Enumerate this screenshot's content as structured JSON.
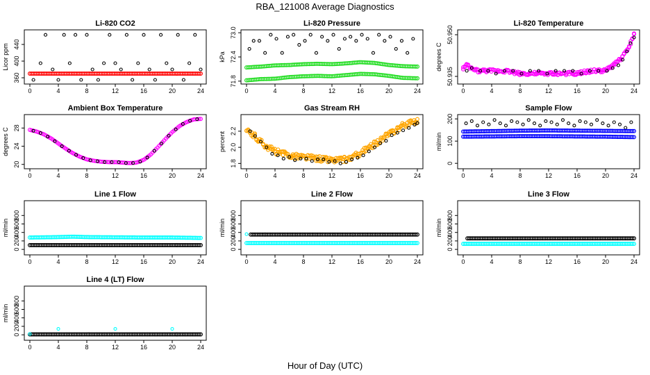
{
  "figure": {
    "title": "RBA_121008  Average Diagnostics",
    "xlabel": "Hour of Day (UTC)"
  },
  "colors": {
    "black": "#000000",
    "red": "#ff0000",
    "green": "#22dd22",
    "magenta": "#ff00ff",
    "orange": "#ffa500",
    "blue": "#0000ff",
    "cyan": "#00ffff"
  },
  "chart_data": [
    {
      "type": "scatter",
      "title": "Li-820 CO2",
      "ylabel": "Licor ppm",
      "xlim": [
        0,
        24
      ],
      "ylim": [
        350,
        470
      ],
      "xticks": [
        "0",
        "4",
        "8",
        "12",
        "16",
        "20",
        "24"
      ],
      "yticks": [
        "360",
        "400",
        "440"
      ],
      "series": [
        {
          "color": "black",
          "pattern": "scattered",
          "x": [
            0.5,
            1.5,
            2.2,
            3.2,
            4.0,
            4.8,
            5.6,
            6.4,
            7.2,
            8.0,
            8.8,
            9.6,
            10.4,
            11.2,
            12.0,
            12.8,
            13.6,
            14.4,
            15.2,
            16.0,
            16.8,
            17.6,
            18.4,
            19.2,
            20.0,
            20.8,
            21.6,
            22.4,
            23.2,
            24.0
          ],
          "y": [
            355,
            395,
            463,
            380,
            355,
            463,
            395,
            463,
            355,
            463,
            380,
            355,
            395,
            463,
            395,
            380,
            463,
            355,
            395,
            463,
            380,
            355,
            463,
            395,
            380,
            463,
            355,
            395,
            463,
            380
          ]
        },
        {
          "color": "red",
          "pattern": "dense",
          "x": [
            0,
            24
          ],
          "y": [
            370,
            370
          ]
        }
      ]
    },
    {
      "type": "scatter",
      "title": "Li-820 Pressure",
      "ylabel": "kPa",
      "xlim": [
        0,
        24
      ],
      "ylim": [
        71.78,
        73.02
      ],
      "xticks": [
        "0",
        "4",
        "8",
        "12",
        "16",
        "20",
        "24"
      ],
      "yticks": [
        "71.8",
        "72.4",
        "73.0"
      ],
      "series": [
        {
          "color": "black",
          "pattern": "scattered",
          "x": [
            0.4,
            1.0,
            1.8,
            2.6,
            3.4,
            4.2,
            5.0,
            5.8,
            6.6,
            7.4,
            8.2,
            9.0,
            9.8,
            10.6,
            11.4,
            12.2,
            13.0,
            13.8,
            14.6,
            15.4,
            16.2,
            17.0,
            17.8,
            18.6,
            19.4,
            20.2,
            21.0,
            21.8,
            22.6,
            23.4
          ],
          "y": [
            72.6,
            72.8,
            72.8,
            72.5,
            72.95,
            72.85,
            72.5,
            72.9,
            72.95,
            72.7,
            72.8,
            72.95,
            72.5,
            72.9,
            72.8,
            72.95,
            72.6,
            72.85,
            72.9,
            72.8,
            72.95,
            72.85,
            72.5,
            72.95,
            72.8,
            72.9,
            72.6,
            72.8,
            72.5,
            72.85
          ]
        },
        {
          "color": "green",
          "pattern": "dense",
          "x": [
            0,
            2,
            4,
            6,
            8,
            10,
            12,
            14,
            16,
            18,
            20,
            22,
            24
          ],
          "y": [
            72.14,
            72.16,
            72.19,
            72.2,
            72.22,
            72.23,
            72.22,
            72.24,
            72.27,
            72.25,
            72.2,
            72.17,
            72.16
          ]
        },
        {
          "color": "green",
          "pattern": "dense",
          "x": [
            0,
            2,
            4,
            6,
            8,
            10,
            12,
            14,
            16,
            18,
            20,
            22,
            24
          ],
          "y": [
            71.82,
            71.85,
            71.86,
            71.9,
            71.92,
            71.93,
            71.92,
            71.95,
            71.98,
            71.97,
            71.93,
            71.88,
            71.87
          ]
        }
      ]
    },
    {
      "type": "scatter",
      "title": "Li-820 Temperature",
      "ylabel": "degrees C",
      "xlim": [
        0,
        24
      ],
      "ylim": [
        50.933,
        50.951
      ],
      "xticks": [
        "0",
        "4",
        "8",
        "12",
        "16",
        "20",
        "24"
      ],
      "yticks": [
        "50.935",
        "50.950"
      ],
      "series": [
        {
          "color": "magenta",
          "pattern": "band",
          "x": [
            0,
            0.5,
            1,
            2,
            4,
            6,
            8,
            10,
            12,
            14,
            16,
            18,
            20,
            21,
            22,
            23,
            24
          ],
          "y": [
            50.938,
            50.939,
            50.938,
            50.937,
            50.937,
            50.937,
            50.936,
            50.936,
            50.936,
            50.936,
            50.936,
            50.937,
            50.937,
            50.939,
            50.941,
            50.944,
            50.95
          ],
          "spread": 0.0012
        },
        {
          "color": "black",
          "pattern": "scattered",
          "x": [
            0.5,
            1.2,
            2.4,
            3.5,
            4.6,
            5.8,
            7.0,
            8.2,
            9.4,
            10.6,
            11.8,
            13.0,
            14.2,
            15.4,
            16.6,
            17.8,
            19.0,
            20.2,
            21.0,
            21.8,
            22.4,
            23.0,
            23.5,
            24.0
          ],
          "y": [
            50.937,
            50.938,
            50.937,
            50.937,
            50.936,
            50.937,
            50.937,
            50.936,
            50.937,
            50.937,
            50.936,
            50.937,
            50.937,
            50.937,
            50.936,
            50.937,
            50.937,
            50.937,
            50.938,
            50.939,
            50.941,
            50.944,
            50.947,
            50.949
          ]
        }
      ]
    },
    {
      "type": "scatter",
      "title": "Ambient Box Temperature",
      "ylabel": "degrees C",
      "xlim": [
        0,
        24
      ],
      "ylim": [
        19.5,
        30.5
      ],
      "xticks": [
        "0",
        "4",
        "8",
        "12",
        "16",
        "20",
        "24"
      ],
      "yticks": [
        "20",
        "24",
        "28"
      ],
      "series": [
        {
          "color": "magenta",
          "pattern": "dense",
          "x": [
            0,
            1,
            2,
            3,
            4,
            5,
            6,
            7,
            8,
            9,
            10,
            11,
            12,
            13,
            14,
            15,
            16,
            17,
            18,
            19,
            20,
            21,
            22,
            23,
            24
          ],
          "y": [
            27.6,
            27.2,
            26.6,
            25.7,
            24.6,
            23.5,
            22.5,
            21.7,
            21.1,
            20.8,
            20.6,
            20.5,
            20.5,
            20.4,
            20.3,
            20.4,
            21.0,
            22.2,
            23.8,
            25.5,
            27.1,
            28.4,
            29.3,
            29.9,
            30.0
          ]
        },
        {
          "color": "black",
          "pattern": "scattered",
          "x": [
            0.5,
            1.5,
            2.5,
            3.5,
            4.5,
            5.5,
            6.5,
            7.5,
            8.5,
            9.5,
            10.5,
            11.5,
            12.5,
            13.5,
            14.5,
            15.5,
            16.5,
            17.5,
            18.5,
            19.5,
            20.5,
            21.5,
            22.5,
            23.5
          ],
          "y": [
            27.4,
            26.9,
            26.1,
            25.1,
            24.0,
            23.0,
            22.1,
            21.4,
            20.9,
            20.7,
            20.5,
            20.5,
            20.5,
            20.3,
            20.3,
            20.6,
            21.5,
            23.0,
            24.6,
            26.3,
            27.7,
            28.9,
            29.6,
            29.95
          ]
        }
      ]
    },
    {
      "type": "scatter",
      "title": "Gas Stream RH",
      "ylabel": "percent",
      "xlim": [
        0,
        24
      ],
      "ylim": [
        1.76,
        2.38
      ],
      "xticks": [
        "0",
        "4",
        "8",
        "12",
        "16",
        "20",
        "24"
      ],
      "yticks": [
        "1.8",
        "2.0",
        "2.2"
      ],
      "series": [
        {
          "color": "orange",
          "pattern": "band",
          "x": [
            0,
            1,
            2,
            3,
            4,
            5,
            6,
            7,
            8,
            9,
            10,
            11,
            12,
            13,
            14,
            15,
            16,
            17,
            18,
            19,
            20,
            21,
            22,
            23,
            24
          ],
          "y": [
            2.2,
            2.15,
            2.07,
            2.0,
            1.95,
            1.92,
            1.9,
            1.89,
            1.88,
            1.87,
            1.86,
            1.85,
            1.84,
            1.84,
            1.85,
            1.88,
            1.93,
            1.98,
            2.04,
            2.1,
            2.16,
            2.22,
            2.27,
            2.31,
            2.33
          ],
          "spread": 0.07
        },
        {
          "color": "black",
          "pattern": "scattered",
          "x": [
            0.5,
            1.2,
            2.0,
            2.8,
            3.6,
            4.4,
            5.2,
            6.0,
            6.8,
            7.6,
            8.4,
            9.2,
            10.0,
            10.8,
            11.6,
            12.4,
            13.2,
            14.0,
            14.8,
            15.6,
            16.4,
            17.2,
            18.0,
            18.8,
            19.6,
            20.4,
            21.2,
            22.0,
            22.8,
            23.6,
            24.0
          ],
          "y": [
            2.2,
            2.14,
            2.07,
            2.0,
            1.92,
            1.9,
            1.86,
            1.88,
            1.84,
            1.86,
            1.86,
            1.83,
            1.85,
            1.85,
            1.82,
            1.83,
            1.8,
            1.82,
            1.85,
            1.87,
            1.9,
            1.95,
            2.0,
            2.05,
            2.08,
            2.15,
            2.18,
            2.21,
            2.24,
            2.28,
            2.3
          ]
        }
      ]
    },
    {
      "type": "scatter",
      "title": "Sample Flow",
      "ylabel": "ml/min",
      "xlim": [
        0,
        24
      ],
      "ylim": [
        -15,
        210
      ],
      "xticks": [
        "0",
        "4",
        "8",
        "12",
        "16",
        "20",
        "24"
      ],
      "yticks": [
        "0",
        "100",
        "200"
      ],
      "series": [
        {
          "color": "black",
          "pattern": "scattered",
          "x": [
            0.4,
            1.2,
            2.0,
            2.8,
            3.6,
            4.4,
            5.2,
            6.0,
            6.8,
            7.6,
            8.4,
            9.2,
            10.0,
            10.8,
            11.6,
            12.4,
            13.2,
            14.0,
            14.8,
            15.6,
            16.4,
            17.2,
            18.0,
            18.8,
            19.6,
            20.4,
            21.2,
            22.0,
            22.8,
            23.6
          ],
          "y": [
            180,
            190,
            170,
            185,
            175,
            195,
            180,
            170,
            190,
            185,
            175,
            195,
            180,
            170,
            190,
            185,
            175,
            195,
            180,
            170,
            190,
            185,
            175,
            195,
            180,
            170,
            185,
            175,
            160,
            185
          ]
        },
        {
          "color": "blue",
          "pattern": "dense",
          "x": [
            0,
            4,
            8,
            12,
            16,
            20,
            24
          ],
          "y": [
            143,
            145,
            147,
            148,
            147,
            146,
            145
          ]
        },
        {
          "color": "blue",
          "pattern": "dense",
          "x": [
            0,
            4,
            8,
            12,
            16,
            20,
            24
          ],
          "y": [
            120,
            121,
            122,
            122,
            121,
            120,
            118
          ]
        }
      ]
    },
    {
      "type": "scatter",
      "title": "Line 1 Flow",
      "ylabel": "ml/min",
      "xlim": [
        0,
        24
      ],
      "ylim": [
        -80,
        1100
      ],
      "xticks": [
        "0",
        "4",
        "8",
        "12",
        "16",
        "20",
        "24"
      ],
      "yticks": [
        "0",
        "200",
        "400",
        "600",
        "800"
      ],
      "series": [
        {
          "color": "cyan",
          "pattern": "dense",
          "x": [
            0,
            4,
            6,
            8,
            12,
            16,
            20,
            24
          ],
          "y": [
            280,
            290,
            300,
            290,
            285,
            280,
            280,
            270
          ]
        },
        {
          "color": "black",
          "pattern": "dense",
          "x": [
            0,
            24
          ],
          "y": [
            100,
            100
          ]
        }
      ]
    },
    {
      "type": "scatter",
      "title": "Line 2 Flow",
      "ylabel": "ml/min",
      "xlim": [
        0,
        24
      ],
      "ylim": [
        -80,
        1100
      ],
      "xticks": [
        "0",
        "4",
        "8",
        "12",
        "16",
        "20",
        "24"
      ],
      "yticks": [
        "0",
        "200",
        "400",
        "600",
        "800"
      ],
      "series": [
        {
          "color": "black",
          "pattern": "dense",
          "x": [
            0.6,
            24
          ],
          "y": [
            350,
            350
          ]
        },
        {
          "color": "cyan",
          "pattern": "dense",
          "x": [
            0,
            24
          ],
          "y": [
            150,
            150
          ]
        },
        {
          "color": "cyan",
          "pattern": "scattered",
          "x": [
            0
          ],
          "y": [
            360
          ]
        }
      ]
    },
    {
      "type": "scatter",
      "title": "Line 3 Flow",
      "ylabel": "ml/min",
      "xlim": [
        0,
        24
      ],
      "ylim": [
        -80,
        1100
      ],
      "xticks": [
        "0",
        "4",
        "8",
        "12",
        "16",
        "20",
        "24"
      ],
      "yticks": [
        "0",
        "200",
        "400",
        "600",
        "800"
      ],
      "series": [
        {
          "color": "black",
          "pattern": "dense",
          "x": [
            0.6,
            24
          ],
          "y": [
            260,
            260
          ]
        },
        {
          "color": "cyan",
          "pattern": "dense",
          "x": [
            0,
            24
          ],
          "y": [
            130,
            130
          ]
        }
      ]
    },
    {
      "type": "scatter",
      "title": "Line 4 (LT) Flow",
      "ylabel": "ml/min",
      "xlim": [
        0,
        24
      ],
      "ylim": [
        -80,
        1100
      ],
      "xticks": [
        "0",
        "4",
        "8",
        "12",
        "16",
        "20",
        "24"
      ],
      "yticks": [
        "0",
        "200",
        "400",
        "600",
        "800"
      ],
      "series": [
        {
          "color": "black",
          "pattern": "dense",
          "x": [
            0,
            24
          ],
          "y": [
            10,
            10
          ]
        },
        {
          "color": "cyan",
          "pattern": "scattered",
          "x": [
            0,
            4,
            12,
            20
          ],
          "y": [
            20,
            140,
            140,
            140
          ]
        }
      ]
    }
  ]
}
